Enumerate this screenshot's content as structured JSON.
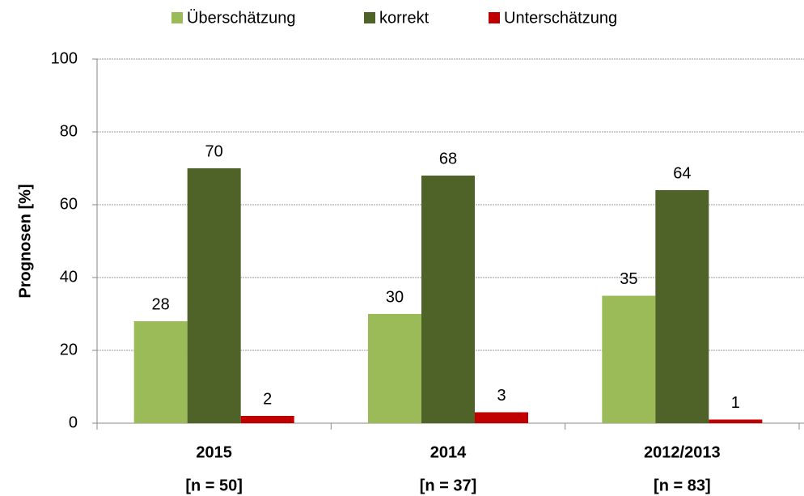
{
  "chart_data": {
    "type": "bar",
    "categories": [
      "2015",
      "2014",
      "2012/2013"
    ],
    "category_sublabels": [
      "[n = 50]",
      "[n = 37]",
      "[n = 83]"
    ],
    "y_label": "Prognosen [%]",
    "series": [
      {
        "name": "Überschätzung",
        "color": "#9bbb59",
        "values": [
          28,
          30,
          35
        ]
      },
      {
        "name": "korrekt",
        "color": "#4f6228",
        "values": [
          70,
          68,
          64
        ]
      },
      {
        "name": "Unterschätzung",
        "color": "#c00000",
        "values": [
          2,
          3,
          1
        ]
      }
    ],
    "ylim": [
      0,
      100
    ],
    "yticks": [
      0,
      20,
      40,
      60,
      80,
      100
    ],
    "grid": true,
    "legend": "top"
  }
}
